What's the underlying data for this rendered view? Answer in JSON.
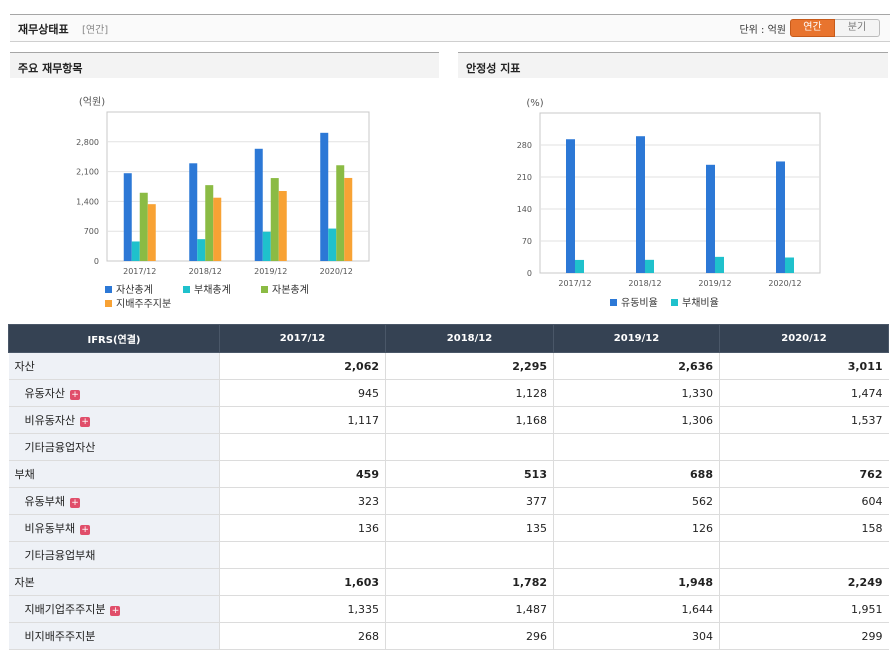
{
  "header": {
    "title": "재무상태표",
    "subtitle": "[연간]",
    "unit_label": "단위 : 억원",
    "btn_annual": "연간",
    "btn_quarter": "분기"
  },
  "panels": {
    "left_title": "주요 재무항목",
    "right_title": "안정성 지표"
  },
  "colors": {
    "asset": "#2c78d6",
    "debt": "#1fc1cc",
    "equity": "#8bbb44",
    "controlling": "#f8a234",
    "current_ratio": "#2c78d6",
    "debt_ratio": "#1fc1cc"
  },
  "chart_data": [
    {
      "type": "bar",
      "ylabel": "(억원)",
      "categories": [
        "2017/12",
        "2018/12",
        "2019/12",
        "2020/12"
      ],
      "ylim": [
        0,
        3500
      ],
      "yticks": [
        0,
        700,
        1400,
        2100,
        2800
      ],
      "ytick_labels": [
        "0",
        "700",
        "1,400",
        "2,100",
        "2,800"
      ],
      "series": [
        {
          "name": "자산총계",
          "values": [
            2062,
            2295,
            2636,
            3011
          ]
        },
        {
          "name": "부채총계",
          "values": [
            459,
            513,
            688,
            762
          ]
        },
        {
          "name": "자본총계",
          "values": [
            1603,
            1782,
            1948,
            2249
          ]
        },
        {
          "name": "지배주주지분",
          "values": [
            1335,
            1487,
            1644,
            1951
          ]
        }
      ]
    },
    {
      "type": "bar",
      "ylabel": "(%)",
      "categories": [
        "2017/12",
        "2018/12",
        "2019/12",
        "2020/12"
      ],
      "ylim": [
        0,
        350
      ],
      "yticks": [
        0,
        70,
        140,
        210,
        280
      ],
      "ytick_labels": [
        "0",
        "70",
        "140",
        "210",
        "280"
      ],
      "series": [
        {
          "name": "유동비율",
          "values": [
            292.6,
            299.2,
            236.7,
            244.0
          ]
        },
        {
          "name": "부채비율",
          "values": [
            28.6,
            28.8,
            35.3,
            33.9
          ]
        }
      ]
    }
  ],
  "table": {
    "header": [
      "IFRS(연결)",
      "2017/12",
      "2018/12",
      "2019/12",
      "2020/12"
    ],
    "rows": [
      {
        "label": "자산",
        "values": [
          "2,062",
          "2,295",
          "2,636",
          "3,011"
        ]
      },
      {
        "label": "유동자산",
        "values": [
          "945",
          "1,128",
          "1,330",
          "1,474"
        ]
      },
      {
        "label": "비유동자산",
        "values": [
          "1,117",
          "1,168",
          "1,306",
          "1,537"
        ]
      },
      {
        "label": "기타금융업자산",
        "values": [
          "",
          "",
          "",
          ""
        ]
      },
      {
        "label": "부채",
        "values": [
          "459",
          "513",
          "688",
          "762"
        ]
      },
      {
        "label": "유동부채",
        "values": [
          "323",
          "377",
          "562",
          "604"
        ]
      },
      {
        "label": "비유동부채",
        "values": [
          "136",
          "135",
          "126",
          "158"
        ]
      },
      {
        "label": "기타금융업부채",
        "values": [
          "",
          "",
          "",
          ""
        ]
      },
      {
        "label": "자본",
        "values": [
          "1,603",
          "1,782",
          "1,948",
          "2,249"
        ]
      },
      {
        "label": "지배기업주주지분",
        "values": [
          "1,335",
          "1,487",
          "1,644",
          "1,951"
        ]
      },
      {
        "label": "비지배주주지분",
        "values": [
          "268",
          "296",
          "304",
          "299"
        ]
      }
    ]
  },
  "expand_icon": "+"
}
